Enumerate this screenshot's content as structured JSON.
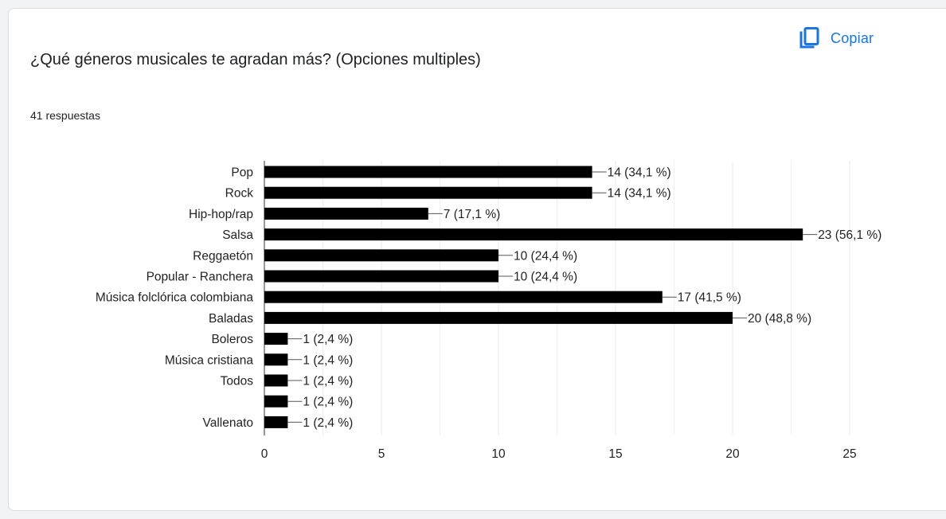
{
  "question": {
    "title": "¿Qué géneros musicales te agradan más? (Opciones multiples)",
    "responses": "41 respuestas"
  },
  "toolbar": {
    "copy_label": "Copiar",
    "copy_icon": "copy-icon"
  },
  "colors": {
    "bar": "#000000",
    "accent": "#1a73e8",
    "grid": "#e8e8e8",
    "axis": "#333333"
  },
  "chart_data": {
    "type": "bar",
    "orientation": "horizontal",
    "categories": [
      "Pop",
      "Rock",
      "Hip-hop/rap",
      "Salsa",
      "Reggaetón",
      "Popular - Ranchera",
      "Música folclórica colombiana",
      "Baladas",
      "Boleros",
      "Música cristiana",
      "Todos",
      "",
      "Vallenato"
    ],
    "values": [
      14,
      14,
      7,
      23,
      10,
      10,
      17,
      20,
      1,
      1,
      1,
      1,
      1
    ],
    "data_labels": [
      "14 (34,1 %)",
      "14 (34,1 %)",
      "7 (17,1 %)",
      "23 (56,1 %)",
      "10 (24,4 %)",
      "10 (24,4 %)",
      "17 (41,5 %)",
      "20 (48,8 %)",
      "1 (2,4 %)",
      "1 (2,4 %)",
      "1 (2,4 %)",
      "1 (2,4 %)",
      "1 (2,4 %)"
    ],
    "x_ticks": [
      "0",
      "5",
      "10",
      "15",
      "20",
      "25"
    ],
    "xlim": [
      0,
      25
    ],
    "grid": true,
    "legend": "none"
  }
}
